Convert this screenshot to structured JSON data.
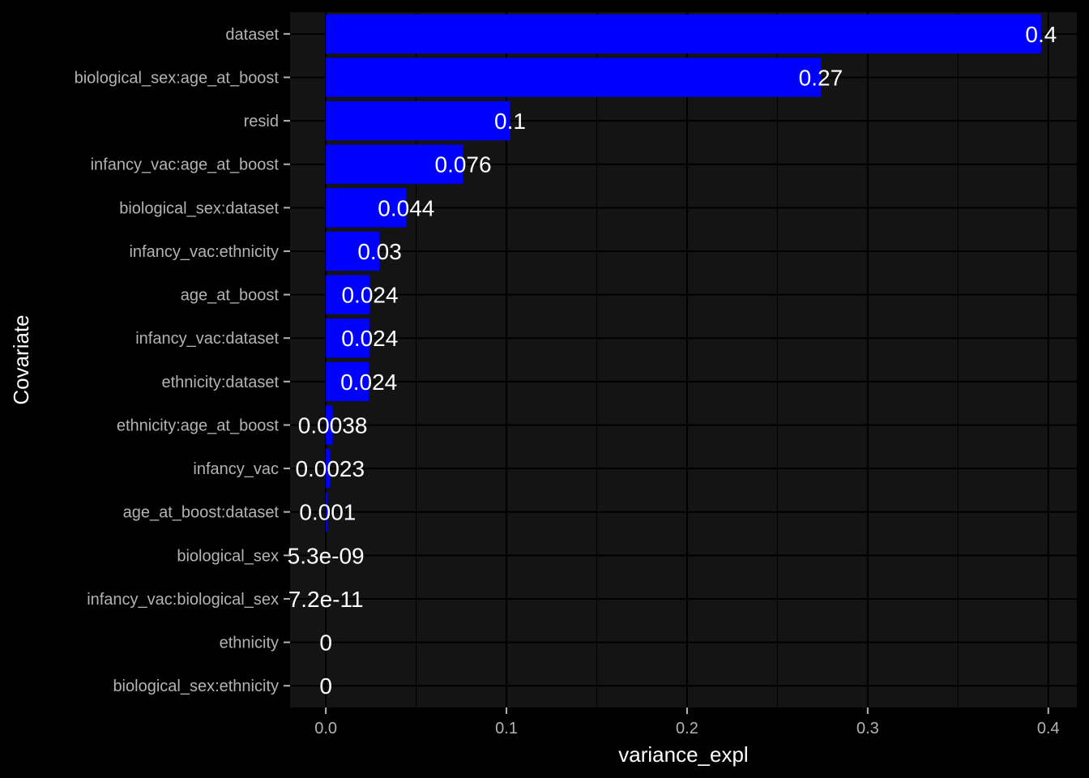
{
  "chart_data": {
    "type": "bar",
    "orientation": "horizontal",
    "xlabel": "variance_expl",
    "ylabel": "Covariate",
    "xlim": [
      -0.0198,
      0.4158
    ],
    "x_ticks": [
      0.0,
      0.1,
      0.2,
      0.3,
      0.4
    ],
    "x_tick_labels": [
      "0.0",
      "0.1",
      "0.2",
      "0.3",
      "0.4"
    ],
    "grid": true,
    "bar_color": "#0000ff",
    "panel_color": "#141414",
    "background_color": "#000000",
    "categories": [
      "dataset",
      "biological_sex:age_at_boost",
      "resid",
      "infancy_vac:age_at_boost",
      "biological_sex:dataset",
      "infancy_vac:ethnicity",
      "age_at_boost",
      "infancy_vac:dataset",
      "ethnicity:dataset",
      "ethnicity:age_at_boost",
      "infancy_vac",
      "age_at_boost:dataset",
      "biological_sex",
      "infancy_vac:biological_sex",
      "ethnicity",
      "biological_sex:ethnicity"
    ],
    "values": [
      0.396,
      0.274,
      0.102,
      0.076,
      0.0445,
      0.0298,
      0.0244,
      0.0243,
      0.0238,
      0.0038,
      0.0023,
      0.001,
      5.3e-09,
      7.2e-11,
      0,
      0
    ],
    "labels": [
      "0.4",
      "0.27",
      "0.1",
      "0.076",
      "0.044",
      "0.03",
      "0.024",
      "0.024",
      "0.024",
      "0.0038",
      "0.0023",
      "0.001",
      "5.3e-09",
      "7.2e-11",
      "0",
      "0"
    ]
  }
}
